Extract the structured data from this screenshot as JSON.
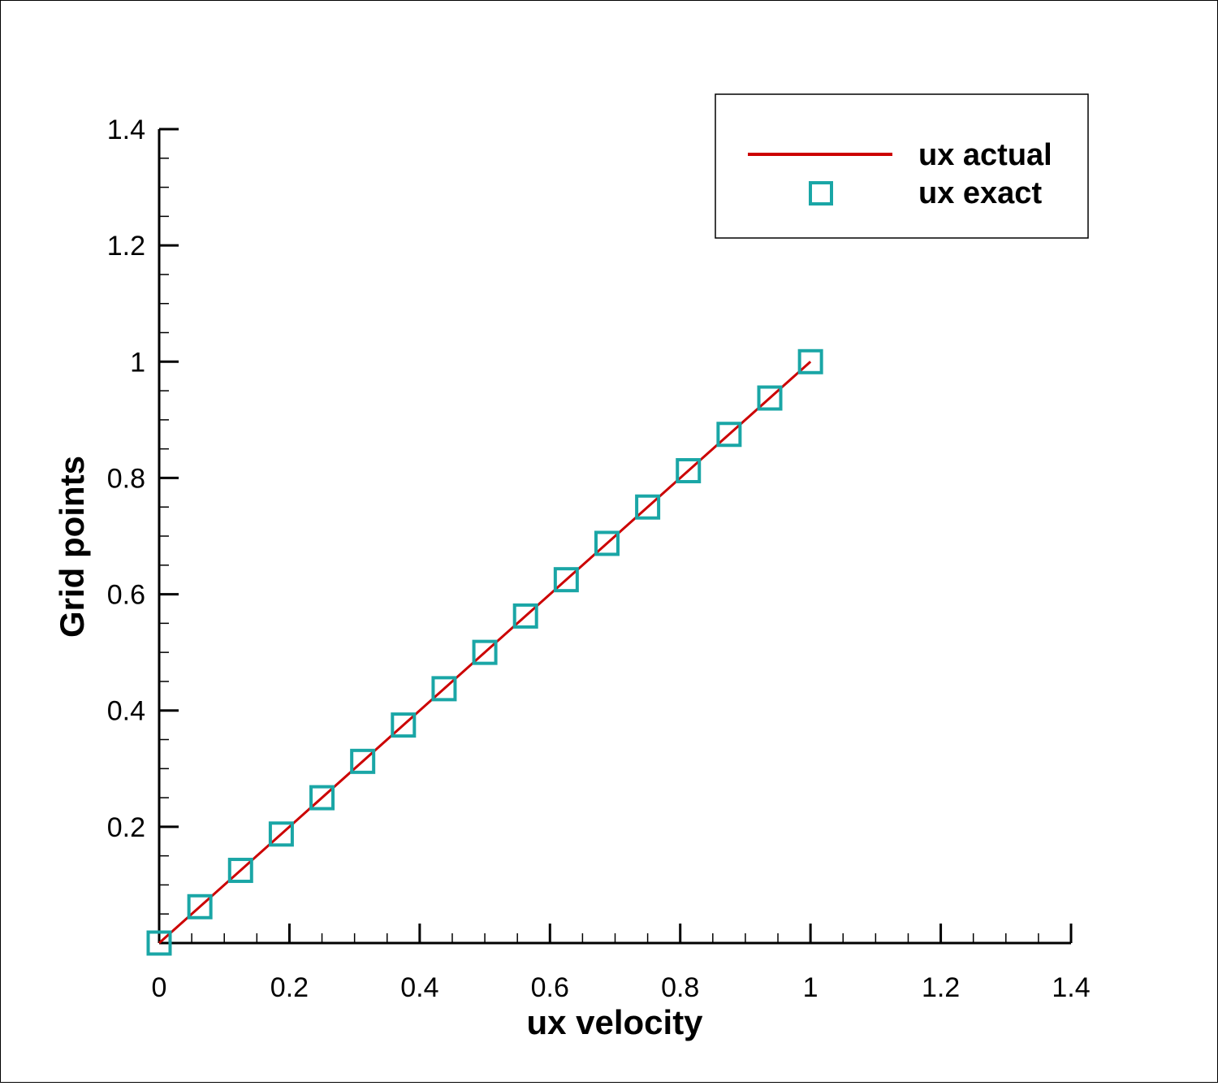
{
  "chart_data": {
    "type": "line",
    "xlabel": "ux velocity",
    "ylabel": "Grid points",
    "xlim": [
      0,
      1.4
    ],
    "ylim": [
      0,
      1.4
    ],
    "x_ticks": [
      0,
      0.2,
      0.4,
      0.6,
      0.8,
      1,
      1.2,
      1.4
    ],
    "x_tick_labels": [
      "0",
      "0.2",
      "0.4",
      "0.6",
      "0.8",
      "1",
      "1.2",
      "1.4"
    ],
    "y_ticks": [
      0.2,
      0.4,
      0.6,
      0.8,
      1,
      1.2,
      1.4
    ],
    "y_tick_labels": [
      "0.2",
      "0.4",
      "0.6",
      "0.8",
      "1",
      "1.2",
      "1.4"
    ],
    "grid": false,
    "legend_position": "top-right",
    "series": [
      {
        "name": "ux actual",
        "style": "line",
        "color": "#cc0000",
        "x": [
          0,
          1
        ],
        "y": [
          0,
          1
        ]
      },
      {
        "name": "ux exact",
        "style": "square-markers",
        "color": "#1aa6a6",
        "x": [
          0,
          0.0625,
          0.125,
          0.1875,
          0.25,
          0.3125,
          0.375,
          0.4375,
          0.5,
          0.5625,
          0.625,
          0.6875,
          0.75,
          0.8125,
          0.875,
          0.9375,
          1
        ],
        "y": [
          0,
          0.0625,
          0.125,
          0.1875,
          0.25,
          0.3125,
          0.375,
          0.4375,
          0.5,
          0.5625,
          0.625,
          0.6875,
          0.75,
          0.8125,
          0.875,
          0.9375,
          1
        ]
      }
    ]
  }
}
